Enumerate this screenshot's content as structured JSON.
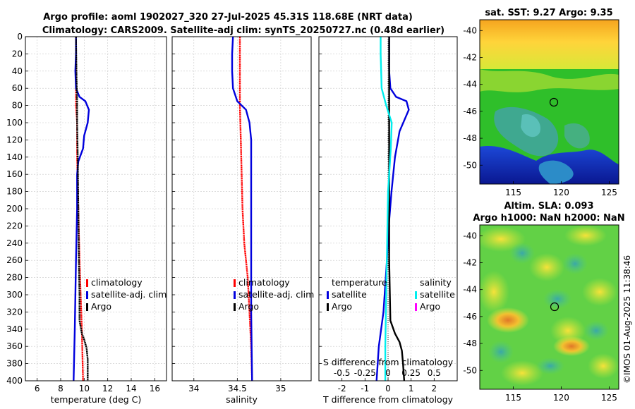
{
  "figure": {
    "title_line1": "Argo profile: aoml 1902027_320 27-Jul-2025 45.31S 118.68E (NRT data)",
    "title_line2": "Climatology: CARS2009. Satellite-adj clim: synTS_20250727.nc (0.48d earlier)",
    "credit": "©IMOS 01-Aug-2025 11:38:46"
  },
  "colors": {
    "climatology": "#ff0000",
    "satellite": "#0000dd",
    "argo": "#000000",
    "salinity_satellite": "#00eeee",
    "salinity_argo": "#ff00ff",
    "grid": "#c8c8c8"
  },
  "legends": {
    "temperature": [
      "climatology",
      "satellite-adj. clim",
      "Argo"
    ],
    "salinity": [
      "climatology",
      "satellite-adj. clim",
      "Argo"
    ],
    "difference_left_title": "temperature",
    "difference_left": [
      "satellite",
      "Argo"
    ],
    "difference_right_title": "salinity",
    "difference_right": [
      "satellite",
      "Argo"
    ]
  },
  "maps": {
    "sst": {
      "title": "sat. SST: 9.27 Argo: 9.35",
      "xticks": [
        "115",
        "120",
        "125"
      ],
      "yticks": [
        "-40",
        "-42",
        "-44",
        "-46",
        "-48",
        "-50"
      ]
    },
    "sla": {
      "title_line1": "Altim. SLA: 0.093",
      "title_line2": "Argo h1000: NaN h2000: NaN",
      "xticks": [
        "115",
        "120",
        "125"
      ],
      "yticks": [
        "-40",
        "-42",
        "-44",
        "-46",
        "-48",
        "-50"
      ]
    }
  },
  "chart_data": [
    {
      "type": "line",
      "name": "temperature",
      "xlabel": "temperature (deg C)",
      "ylabel": "",
      "xlim": [
        5,
        17
      ],
      "ylim": [
        400,
        0
      ],
      "xticks": [
        6,
        8,
        10,
        12,
        14,
        16
      ],
      "yticks": [
        0,
        20,
        40,
        60,
        80,
        100,
        120,
        140,
        160,
        180,
        200,
        220,
        240,
        260,
        280,
        300,
        320,
        340,
        360,
        380,
        400
      ],
      "grid": true,
      "series": [
        {
          "name": "climatology",
          "color": "#ff0000",
          "points": [
            [
              9.3,
              0
            ],
            [
              9.3,
              20
            ],
            [
              9.3,
              40
            ],
            [
              9.3,
              60
            ],
            [
              9.3,
              80
            ],
            [
              9.4,
              100
            ],
            [
              9.4,
              140
            ],
            [
              9.5,
              200
            ],
            [
              9.6,
              260
            ],
            [
              9.7,
              300
            ],
            [
              9.8,
              340
            ],
            [
              9.9,
              400
            ]
          ]
        },
        {
          "name": "satellite-adj. clim",
          "color": "#0000dd",
          "points": [
            [
              9.3,
              0
            ],
            [
              9.3,
              20
            ],
            [
              9.25,
              40
            ],
            [
              9.3,
              60
            ],
            [
              9.6,
              70
            ],
            [
              10.1,
              75
            ],
            [
              10.4,
              85
            ],
            [
              10.3,
              100
            ],
            [
              10.0,
              115
            ],
            [
              9.9,
              130
            ],
            [
              9.5,
              145
            ],
            [
              9.4,
              160
            ],
            [
              9.4,
              200
            ],
            [
              9.3,
              260
            ],
            [
              9.2,
              340
            ],
            [
              9.1,
              400
            ]
          ]
        },
        {
          "name": "Argo",
          "color": "#000000",
          "points": [
            [
              9.3,
              0
            ],
            [
              9.35,
              50
            ],
            [
              9.4,
              75
            ],
            [
              9.4,
              100
            ],
            [
              9.45,
              140
            ],
            [
              9.5,
              200
            ],
            [
              9.55,
              260
            ],
            [
              9.6,
              300
            ],
            [
              9.6,
              330
            ],
            [
              9.8,
              345
            ],
            [
              10.0,
              352
            ],
            [
              10.2,
              362
            ],
            [
              10.3,
              375
            ],
            [
              10.3,
              400
            ]
          ]
        }
      ]
    },
    {
      "type": "line",
      "name": "salinity",
      "xlabel": "salinity",
      "ylabel": "",
      "xlim": [
        33.75,
        35.35
      ],
      "ylim": [
        400,
        0
      ],
      "xticks": [
        34,
        34.5,
        35
      ],
      "yticks": [
        0,
        20,
        40,
        60,
        80,
        100,
        120,
        140,
        160,
        180,
        200,
        220,
        240,
        260,
        280,
        300,
        320,
        340,
        360,
        380,
        400
      ],
      "grid": true,
      "series": [
        {
          "name": "climatology",
          "color": "#ff0000",
          "points": [
            [
              34.53,
              0
            ],
            [
              34.53,
              40
            ],
            [
              34.53,
              80
            ],
            [
              34.54,
              120
            ],
            [
              34.55,
              160
            ],
            [
              34.56,
              200
            ],
            [
              34.58,
              240
            ],
            [
              34.62,
              280
            ],
            [
              34.64,
              320
            ],
            [
              34.66,
              360
            ],
            [
              34.67,
              400
            ]
          ]
        },
        {
          "name": "satellite-adj. clim",
          "color": "#0000dd",
          "points": [
            [
              34.45,
              0
            ],
            [
              34.44,
              20
            ],
            [
              34.44,
              40
            ],
            [
              34.45,
              60
            ],
            [
              34.5,
              75
            ],
            [
              34.6,
              85
            ],
            [
              34.64,
              100
            ],
            [
              34.66,
              120
            ],
            [
              34.66,
              160
            ],
            [
              34.66,
              240
            ],
            [
              34.66,
              320
            ],
            [
              34.67,
              400
            ]
          ]
        },
        {
          "name": "Argo",
          "color": "#000000",
          "points": []
        }
      ]
    },
    {
      "type": "line",
      "name": "difference from climatology",
      "xlabel": "T difference from climatology",
      "x2label": "S difference from climatology",
      "xlim": [
        -3,
        3
      ],
      "x2lim": [
        -0.75,
        0.75
      ],
      "ylim": [
        400,
        0
      ],
      "xticks": [
        -2,
        -1,
        0,
        1,
        2
      ],
      "x2ticks": [
        "-0.5",
        "-0.25",
        "0",
        "0.25",
        "0.5"
      ],
      "yticks": [
        0,
        20,
        40,
        60,
        80,
        100,
        120,
        140,
        160,
        180,
        200,
        220,
        240,
        260,
        280,
        300,
        320,
        340,
        360,
        380,
        400
      ],
      "grid": true,
      "series": [
        {
          "name": "temperature satellite",
          "axis": "T",
          "color": "#0000dd",
          "points": [
            [
              0.05,
              0
            ],
            [
              0.05,
              40
            ],
            [
              0.1,
              60
            ],
            [
              0.35,
              70
            ],
            [
              0.8,
              75
            ],
            [
              0.9,
              85
            ],
            [
              0.5,
              110
            ],
            [
              0.3,
              140
            ],
            [
              0.15,
              180
            ],
            [
              0.0,
              230
            ],
            [
              -0.05,
              260
            ],
            [
              -0.2,
              320
            ],
            [
              -0.4,
              360
            ],
            [
              -0.5,
              400
            ]
          ]
        },
        {
          "name": "temperature Argo",
          "axis": "T",
          "color": "#000000",
          "points": [
            [
              0.05,
              0
            ],
            [
              0.05,
              60
            ],
            [
              0.05,
              100
            ],
            [
              0.05,
              160
            ],
            [
              0.05,
              260
            ],
            [
              0.1,
              330
            ],
            [
              0.3,
              345
            ],
            [
              0.5,
              355
            ],
            [
              0.6,
              365
            ],
            [
              0.65,
              380
            ],
            [
              0.7,
              400
            ]
          ]
        },
        {
          "name": "salinity satellite",
          "axis": "S",
          "color": "#00eeee",
          "points": [
            [
              -0.08,
              0
            ],
            [
              -0.08,
              20
            ],
            [
              -0.07,
              60
            ],
            [
              -0.02,
              80
            ],
            [
              0.04,
              100
            ],
            [
              0.03,
              130
            ],
            [
              0.0,
              180
            ],
            [
              -0.01,
              240
            ],
            [
              -0.02,
              300
            ],
            [
              -0.03,
              360
            ],
            [
              -0.03,
              400
            ]
          ]
        },
        {
          "name": "salinity Argo",
          "axis": "S",
          "color": "#ff00ff",
          "points": []
        }
      ]
    }
  ]
}
